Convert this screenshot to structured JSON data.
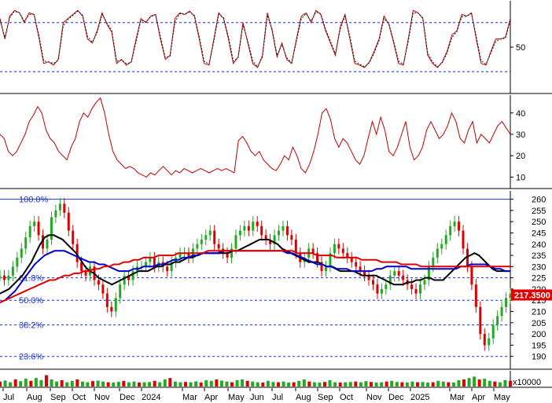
{
  "chart_data": [
    {
      "type": "line",
      "panel": "stochastic",
      "series": [
        {
          "color": "#c00000",
          "style": "solid",
          "values": [
            85,
            60,
            88,
            95,
            92,
            80,
            92,
            90,
            62,
            30,
            32,
            28,
            35,
            80,
            85,
            90,
            95,
            88,
            60,
            55,
            70,
            92,
            78,
            68,
            30,
            35,
            28,
            32,
            60,
            85,
            80,
            88,
            90,
            60,
            35,
            40,
            85,
            92,
            90,
            94,
            88,
            60,
            30,
            28,
            60,
            92,
            85,
            60,
            30,
            38,
            80,
            55,
            30,
            25,
            40,
            92,
            70,
            38,
            55,
            35,
            30,
            60,
            88,
            92,
            80,
            95,
            90,
            70,
            55,
            40,
            75,
            90,
            60,
            30,
            28,
            25,
            32,
            45,
            60,
            88,
            78,
            55,
            30,
            28,
            60,
            95,
            92,
            85,
            40,
            30,
            25,
            32,
            45,
            65,
            70,
            90,
            88,
            92,
            60,
            30,
            28,
            45,
            60,
            60,
            62,
            85
          ]
        },
        {
          "color": "#1a1a1a",
          "style": "dashed",
          "values": [
            83,
            62,
            86,
            94,
            92,
            82,
            90,
            90,
            65,
            33,
            32,
            30,
            34,
            76,
            84,
            89,
            94,
            89,
            63,
            56,
            68,
            90,
            80,
            70,
            33,
            34,
            30,
            31,
            57,
            83,
            81,
            87,
            90,
            63,
            37,
            39,
            81,
            91,
            90,
            93,
            89,
            63,
            33,
            29,
            57,
            90,
            86,
            63,
            33,
            37,
            77,
            57,
            33,
            26,
            38,
            89,
            72,
            40,
            53,
            37,
            31,
            57,
            85,
            91,
            82,
            93,
            91,
            72,
            57,
            42,
            72,
            88,
            63,
            33,
            29,
            26,
            31,
            43,
            58,
            85,
            79,
            57,
            33,
            29,
            57,
            92,
            92,
            86,
            43,
            32,
            26,
            31,
            43,
            62,
            69,
            87,
            88,
            91,
            63,
            33,
            29,
            43,
            57,
            60,
            61,
            82
          ]
        }
      ],
      "y_ticks": [
        50
      ],
      "ref_lines": [
        20,
        80
      ]
    },
    {
      "type": "line",
      "panel": "indicator",
      "series": [
        {
          "color": "#c00000",
          "values": [
            30,
            28,
            22,
            20,
            22,
            26,
            30,
            36,
            39,
            43,
            40,
            32,
            28,
            26,
            22,
            20,
            18,
            24,
            28,
            36,
            40,
            38,
            42,
            45,
            47,
            40,
            30,
            22,
            18,
            16,
            14,
            15,
            14,
            12,
            11,
            10,
            12,
            11,
            13,
            15,
            13,
            11,
            13,
            12,
            14,
            13,
            12,
            13,
            14,
            13,
            12,
            13,
            14,
            13,
            14,
            13,
            12,
            27,
            29,
            26,
            22,
            20,
            22,
            18,
            16,
            14,
            13,
            16,
            20,
            18,
            24,
            20,
            14,
            12,
            16,
            22,
            30,
            40,
            42,
            37,
            28,
            24,
            28,
            26,
            22,
            18,
            16,
            20,
            28,
            36,
            30,
            38,
            32,
            22,
            20,
            24,
            30,
            36,
            24,
            18,
            20,
            24,
            32,
            36,
            32,
            28,
            30,
            34,
            40,
            36,
            28,
            26,
            32,
            36,
            26,
            30,
            28,
            26,
            30,
            34,
            36,
            33,
            30
          ]
        }
      ],
      "y_ticks": [
        10,
        20,
        30,
        40
      ]
    },
    {
      "type": "line",
      "panel": "price",
      "ylim": [
        185,
        263
      ],
      "y_ticks": [
        190,
        195,
        200,
        205,
        210,
        215,
        220,
        225,
        230,
        235,
        240,
        245,
        250,
        255,
        260
      ],
      "fibonacci": [
        {
          "label": "100.0%",
          "value": 260
        },
        {
          "label": "61.8%",
          "value": 225
        },
        {
          "label": "50.0%",
          "value": 215
        },
        {
          "label": "38.2%",
          "value": 204
        },
        {
          "label": "23.6%",
          "value": 190
        }
      ],
      "last_price_label": "217.3500",
      "last_price": 217.35,
      "close": [
        226,
        224,
        226,
        230,
        234,
        238,
        243,
        248,
        250,
        244,
        238,
        242,
        252,
        255,
        258,
        254,
        246,
        240,
        232,
        228,
        226,
        230,
        224,
        222,
        218,
        212,
        210,
        216,
        222,
        226,
        224,
        228,
        230,
        230,
        232,
        234,
        230,
        232,
        230,
        228,
        232,
        234,
        236,
        236,
        234,
        238,
        240,
        242,
        244,
        246,
        240,
        238,
        236,
        234,
        238,
        244,
        246,
        248,
        246,
        250,
        248,
        244,
        242,
        240,
        244,
        246,
        248,
        244,
        242,
        236,
        232,
        234,
        238,
        236,
        232,
        228,
        230,
        236,
        240,
        238,
        236,
        234,
        232,
        230,
        228,
        226,
        224,
        222,
        218,
        220,
        222,
        226,
        228,
        226,
        224,
        222,
        220,
        218,
        222,
        224,
        230,
        234,
        238,
        240,
        244,
        248,
        250,
        246,
        238,
        230,
        222,
        212,
        200,
        195,
        198,
        204,
        208,
        212,
        216,
        218
      ],
      "series": [
        {
          "name": "",
          "color": "#000000",
          "values": [
            218,
            219,
            220,
            222,
            224,
            226,
            229,
            232,
            236,
            240,
            243,
            244,
            244,
            243,
            242,
            240,
            238,
            236,
            233,
            230,
            228,
            227,
            225,
            224,
            223,
            222,
            223,
            224,
            225,
            226,
            227,
            228,
            228,
            228,
            229,
            230,
            230,
            231,
            231,
            232,
            232,
            233,
            234,
            234,
            235,
            236,
            236,
            236,
            236,
            236,
            236,
            236,
            237,
            237,
            238,
            239,
            240,
            241,
            242,
            242,
            242,
            241,
            240,
            238,
            237,
            236,
            235,
            234,
            233,
            232,
            232,
            232,
            231,
            230,
            230,
            229,
            228,
            228,
            228,
            228,
            227,
            226,
            226,
            226,
            226,
            225,
            224,
            223,
            222,
            222,
            222,
            223,
            223,
            224,
            224,
            225,
            225,
            224,
            224,
            224,
            226,
            228,
            230,
            232,
            234,
            235,
            236,
            235,
            233,
            231,
            229,
            228,
            228,
            228,
            228
          ]
        },
        {
          "name": "",
          "color": "#0000cc",
          "values": [
            214,
            215,
            217,
            219,
            222,
            225,
            228,
            231,
            233,
            235,
            236,
            237,
            237,
            237,
            236,
            235,
            234,
            233,
            232,
            232,
            231,
            231,
            230,
            229,
            228,
            228,
            228,
            229,
            229,
            230,
            230,
            230,
            231,
            231,
            232,
            233,
            233,
            234,
            234,
            235,
            235,
            236,
            236,
            236,
            236,
            237,
            237,
            237,
            237,
            237,
            237,
            237,
            237,
            237,
            237,
            237,
            237,
            237,
            236,
            236,
            235,
            234,
            233,
            232,
            231,
            231,
            230,
            230,
            229,
            229,
            229,
            228,
            228,
            228,
            228,
            228,
            229,
            229,
            230,
            230,
            230,
            230,
            230,
            229,
            229,
            229,
            229,
            229,
            229,
            229,
            229,
            229,
            229,
            230,
            230,
            231,
            231,
            231,
            231,
            230,
            229,
            229,
            228,
            228
          ]
        },
        {
          "name": "",
          "color": "#dd0000",
          "values": [
            214,
            215,
            216,
            217,
            218,
            219,
            220,
            221,
            222,
            223,
            224,
            224,
            225,
            226,
            226,
            227,
            227,
            228,
            228,
            229,
            229,
            230,
            230,
            231,
            231,
            232,
            232,
            233,
            233,
            234,
            234,
            234,
            235,
            235,
            235,
            235,
            236,
            236,
            236,
            236,
            236,
            236,
            237,
            237,
            237,
            237,
            237,
            237,
            237,
            237,
            237,
            237,
            237,
            237,
            237,
            237,
            237,
            237,
            237,
            237,
            236,
            236,
            236,
            236,
            235,
            235,
            235,
            235,
            234,
            234,
            234,
            234,
            234,
            233,
            233,
            233,
            233,
            232,
            232,
            232,
            232,
            231,
            231,
            231,
            231,
            230,
            230,
            230,
            230,
            230,
            230,
            230,
            230,
            230,
            230,
            230,
            230,
            230,
            230,
            230,
            230,
            230,
            230,
            230
          ]
        }
      ]
    },
    {
      "type": "bar",
      "panel": "volume",
      "y_unit_label": "x10000",
      "values": [
        0.35,
        0.42,
        0.3,
        0.5,
        0.38,
        0.55,
        0.4,
        0.6,
        0.45,
        0.8,
        0.5,
        0.35,
        0.45,
        0.3,
        0.4,
        0.5,
        0.35,
        0.3,
        0.38,
        0.42,
        0.35,
        0.3,
        0.28,
        0.33,
        0.4,
        0.3,
        0.35,
        0.28,
        0.3,
        0.32,
        0.4,
        0.3,
        0.5,
        0.6,
        0.35,
        0.3,
        0.32,
        0.3,
        0.36,
        0.28,
        0.45,
        0.4,
        0.5,
        0.42,
        0.35,
        0.3,
        0.45,
        0.5,
        0.4,
        0.35,
        0.3,
        0.28,
        0.4,
        0.32,
        0.3,
        0.35,
        0.28,
        0.3,
        0.4,
        0.5,
        0.35,
        0.3,
        0.28,
        0.32,
        0.45,
        0.3,
        0.28,
        0.3,
        0.32,
        0.35,
        0.3,
        0.38,
        0.32,
        0.28,
        0.3,
        0.35,
        0.4,
        0.32,
        0.3,
        0.28,
        0.35,
        0.3,
        0.32,
        0.28,
        0.3,
        0.4,
        0.35,
        0.3,
        0.28,
        0.45,
        0.5,
        0.6,
        0.7,
        0.5,
        0.55,
        0.4,
        0.35,
        0.3,
        0.45,
        0.4
      ]
    }
  ],
  "x_axis": {
    "ticks": [
      "Jul",
      "Aug",
      "Sep",
      "Oct",
      "Nov",
      "Dec",
      "2024",
      "Mar",
      "Apr",
      "May",
      "Jun",
      "Jul",
      "Aug",
      "Sep",
      "Oct",
      "Nov",
      "Dec",
      "2025",
      "Mar",
      "Apr",
      "May"
    ]
  }
}
